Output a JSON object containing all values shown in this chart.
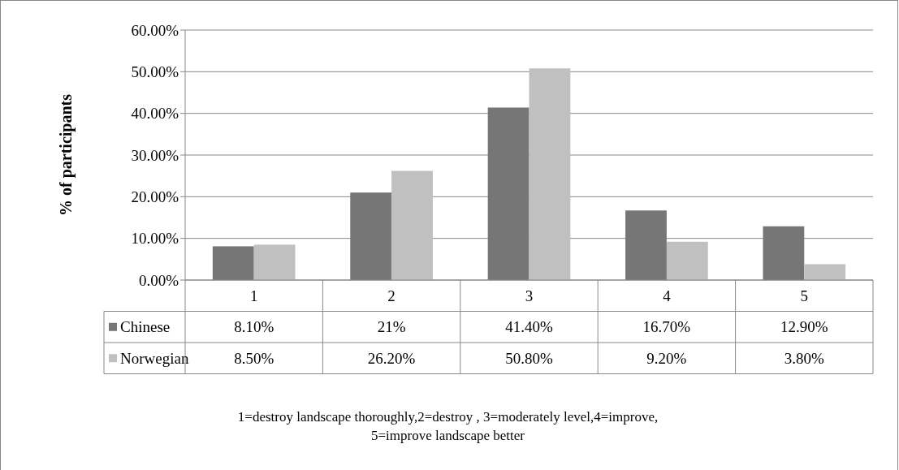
{
  "chart_data": {
    "type": "bar",
    "ylabel": "% of participants",
    "categories": [
      "1",
      "2",
      "3",
      "4",
      "5"
    ],
    "series": [
      {
        "name": "Chinese",
        "color": "#767676",
        "values": [
          8.1,
          21,
          41.4,
          16.7,
          12.9
        ],
        "value_labels": [
          "8.10%",
          "21%",
          "41.40%",
          "16.70%",
          "12.90%"
        ]
      },
      {
        "name": "Norwegian",
        "color": "#c0c0c0",
        "values": [
          8.5,
          26.2,
          50.8,
          9.2,
          3.8
        ],
        "value_labels": [
          "8.50%",
          "26.20%",
          "50.80%",
          "9.20%",
          "3.80%"
        ]
      }
    ],
    "ylim": [
      0,
      60
    ],
    "yticks": [
      {
        "value": 0,
        "label": "0.00%"
      },
      {
        "value": 10,
        "label": "10.00%"
      },
      {
        "value": 20,
        "label": "20.00%"
      },
      {
        "value": 30,
        "label": "30.00%"
      },
      {
        "value": 40,
        "label": "40.00%"
      },
      {
        "value": 50,
        "label": "50.00%"
      },
      {
        "value": 60,
        "label": "60.00%"
      }
    ],
    "grid": "y",
    "legend": "bottom",
    "annotations": [
      "1=destroy landscape thoroughly,2=destroy , 3=moderately level,4=improve,",
      "5=improve landscape better"
    ]
  }
}
